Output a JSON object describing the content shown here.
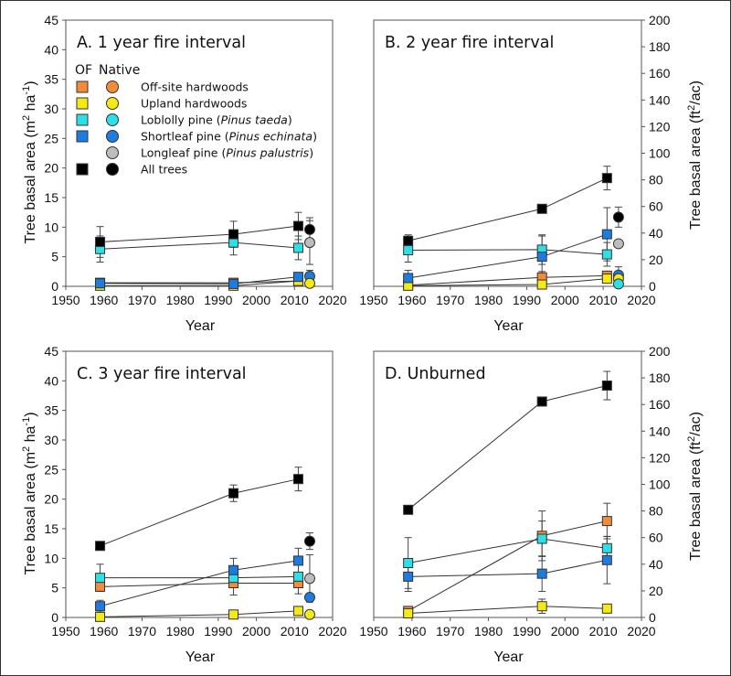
{
  "chart_data": {
    "type": "line",
    "units_left": "m2 ha-1",
    "units_right": "ft2/ac",
    "conversion_right_per_left": 4.4444,
    "xlabel": "Year",
    "ylabel_left": "Tree basal area (m² ha⁻¹)",
    "ylabel_right": "Tree basal area (ft²/ac)",
    "xlim": [
      1950,
      2020
    ],
    "xticks": [
      1950,
      1960,
      1970,
      1980,
      1990,
      2000,
      2010,
      2020
    ],
    "ylim_left": [
      0,
      45
    ],
    "yticks_left": [
      0,
      5,
      10,
      15,
      20,
      25,
      30,
      35,
      40,
      45
    ],
    "ylim_right": [
      0,
      200
    ],
    "yticks_right": [
      0,
      20,
      40,
      60,
      80,
      100,
      120,
      140,
      160,
      180,
      200
    ],
    "legend": {
      "header_of": "OF",
      "header_native": "Native",
      "placement": "panel A, upper-left",
      "entries": [
        {
          "key": "offsite",
          "label_pre": "Off-site hardwoods",
          "label_italic": "",
          "label_post": "",
          "color": "#f28c3a",
          "has_of": true
        },
        {
          "key": "upland",
          "label_pre": "Upland hardwoods",
          "label_italic": "",
          "label_post": "",
          "color": "#f5ea14",
          "has_of": true
        },
        {
          "key": "loblolly",
          "label_pre": "Loblolly pine (",
          "label_italic": "Pinus taeda",
          "label_post": ")",
          "color": "#2de0e8",
          "has_of": true
        },
        {
          "key": "shortleaf",
          "label_pre": "Shortleaf pine (",
          "label_italic": "Pinus echinata",
          "label_post": ")",
          "color": "#1e7be0",
          "has_of": true
        },
        {
          "key": "longleaf",
          "label_pre": "Longleaf pine (",
          "label_italic": "Pinus palustris",
          "label_post": ")",
          "color": "#bdbdbd",
          "has_of": false
        },
        {
          "key": "all",
          "label_pre": "All trees",
          "label_italic": "",
          "label_post": "",
          "color": "#000000",
          "has_of": true
        }
      ]
    },
    "panels": [
      {
        "id": "A",
        "title": "A. 1 year fire interval",
        "left_axis": true,
        "right_axis": false,
        "of_series": [
          {
            "key": "offsite",
            "x": [
              1959,
              1994,
              2011
            ],
            "y": [
              0.6,
              0.6,
              0.9
            ],
            "err": [
              0,
              0,
              0
            ]
          },
          {
            "key": "upland",
            "x": [
              1959,
              1994,
              2011
            ],
            "y": [
              0.1,
              0.1,
              0.9
            ],
            "err": [
              0,
              0,
              0
            ]
          },
          {
            "key": "loblolly",
            "x": [
              1959,
              1994,
              2011
            ],
            "y": [
              6.3,
              7.4,
              6.5
            ],
            "err": [
              2.2,
              2.1,
              2.0
            ]
          },
          {
            "key": "shortleaf",
            "x": [
              1959,
              1994,
              2011
            ],
            "y": [
              0.5,
              0.4,
              1.6
            ],
            "err": [
              0,
              0,
              0
            ]
          },
          {
            "key": "all",
            "x": [
              1959,
              1994,
              2011
            ],
            "y": [
              7.5,
              8.8,
              10.2
            ],
            "err": [
              2.6,
              2.2,
              2.3
            ]
          }
        ],
        "native": [
          {
            "key": "all",
            "x": 2014,
            "y": 9.6,
            "err": 2.0
          },
          {
            "key": "longleaf",
            "x": 2014,
            "y": 7.4,
            "err": 3.7
          },
          {
            "key": "shortleaf",
            "x": 2014,
            "y": 1.7,
            "err": 1.0
          },
          {
            "key": "upland",
            "x": 2014,
            "y": 0.5,
            "err": 0
          }
        ]
      },
      {
        "id": "B",
        "title": "B. 2 year fire interval",
        "left_axis": false,
        "right_axis": true,
        "of_series": [
          {
            "key": "offsite",
            "x": [
              1959,
              1994,
              2011
            ],
            "y": [
              0.2,
              1.5,
              1.8
            ],
            "err": [
              0,
              1.0,
              0
            ]
          },
          {
            "key": "upland",
            "x": [
              1959,
              1994,
              2011
            ],
            "y": [
              0.1,
              0.3,
              1.3
            ],
            "err": [
              0,
              0,
              0
            ]
          },
          {
            "key": "loblolly",
            "x": [
              1959,
              1994,
              2011
            ],
            "y": [
              6.1,
              6.2,
              5.4
            ],
            "err": [
              2.0,
              2.5,
              2.0
            ]
          },
          {
            "key": "shortleaf",
            "x": [
              1959,
              1994,
              2011
            ],
            "y": [
              1.4,
              5.0,
              8.8
            ],
            "err": [
              1.3,
              3.5,
              4.5
            ]
          },
          {
            "key": "all",
            "x": [
              1959,
              1994,
              2011
            ],
            "y": [
              7.7,
              13.1,
              18.3
            ],
            "err": [
              1.0,
              0,
              2.0
            ]
          }
        ],
        "native": [
          {
            "key": "all",
            "x": 2014,
            "y": 11.7,
            "err": 1.7
          },
          {
            "key": "longleaf",
            "x": 2014,
            "y": 7.2,
            "err": 0
          },
          {
            "key": "shortleaf",
            "x": 2014,
            "y": 1.9,
            "err": 1.4
          },
          {
            "key": "upland",
            "x": 2014,
            "y": 1.3,
            "err": 0
          },
          {
            "key": "loblolly",
            "x": 2014,
            "y": 0.4,
            "err": 0
          }
        ]
      },
      {
        "id": "C",
        "title": "C. 3 year fire interval",
        "left_axis": true,
        "right_axis": false,
        "of_series": [
          {
            "key": "offsite",
            "x": [
              1959,
              1994,
              2011
            ],
            "y": [
              5.2,
              5.8,
              5.8
            ],
            "err": [
              0.7,
              2.0,
              1.8
            ]
          },
          {
            "key": "upland",
            "x": [
              1959,
              1994,
              2011
            ],
            "y": [
              0.1,
              0.5,
              1.1
            ],
            "err": [
              0,
              0,
              0
            ]
          },
          {
            "key": "loblolly",
            "x": [
              1959,
              1994,
              2011
            ],
            "y": [
              6.7,
              6.7,
              6.9
            ],
            "err": [
              2.3,
              0,
              0
            ]
          },
          {
            "key": "shortleaf",
            "x": [
              1959,
              1994,
              2011
            ],
            "y": [
              1.9,
              8.0,
              9.6
            ],
            "err": [
              1.0,
              2.0,
              2.1
            ]
          },
          {
            "key": "all",
            "x": [
              1959,
              1994,
              2011
            ],
            "y": [
              12.1,
              21.0,
              23.4
            ],
            "err": [
              0,
              1.4,
              2.0
            ]
          }
        ],
        "native": [
          {
            "key": "all",
            "x": 2014,
            "y": 12.9,
            "err": 1.4
          },
          {
            "key": "longleaf",
            "x": 2014,
            "y": 6.6,
            "err": 4.0
          },
          {
            "key": "shortleaf",
            "x": 2014,
            "y": 3.4,
            "err": 0
          },
          {
            "key": "upland",
            "x": 2014,
            "y": 0.5,
            "err": 0
          }
        ]
      },
      {
        "id": "D",
        "title": "D. Unburned",
        "left_axis": false,
        "right_axis": true,
        "of_series": [
          {
            "key": "offsite",
            "x": [
              1959,
              1994,
              2011
            ],
            "y": [
              1.1,
              13.8,
              16.3
            ],
            "err": [
              0,
              4.2,
              3.0
            ]
          },
          {
            "key": "upland",
            "x": [
              1959,
              1994,
              2011
            ],
            "y": [
              0.7,
              1.9,
              1.5
            ],
            "err": [
              0,
              1.2,
              0
            ]
          },
          {
            "key": "loblolly",
            "x": [
              1959,
              1994,
              2011
            ],
            "y": [
              9.2,
              13.3,
              11.7
            ],
            "err": [
              4.3,
              3.0,
              2.0
            ]
          },
          {
            "key": "shortleaf",
            "x": [
              1959,
              1994,
              2011
            ],
            "y": [
              6.9,
              7.4,
              9.7
            ],
            "err": [
              2.5,
              3.0,
              4.0
            ]
          },
          {
            "key": "all",
            "x": [
              1959,
              1994,
              2011
            ],
            "y": [
              18.2,
              36.5,
              39.2
            ],
            "err": [
              0,
              0,
              2.4
            ]
          }
        ],
        "native": []
      }
    ]
  }
}
